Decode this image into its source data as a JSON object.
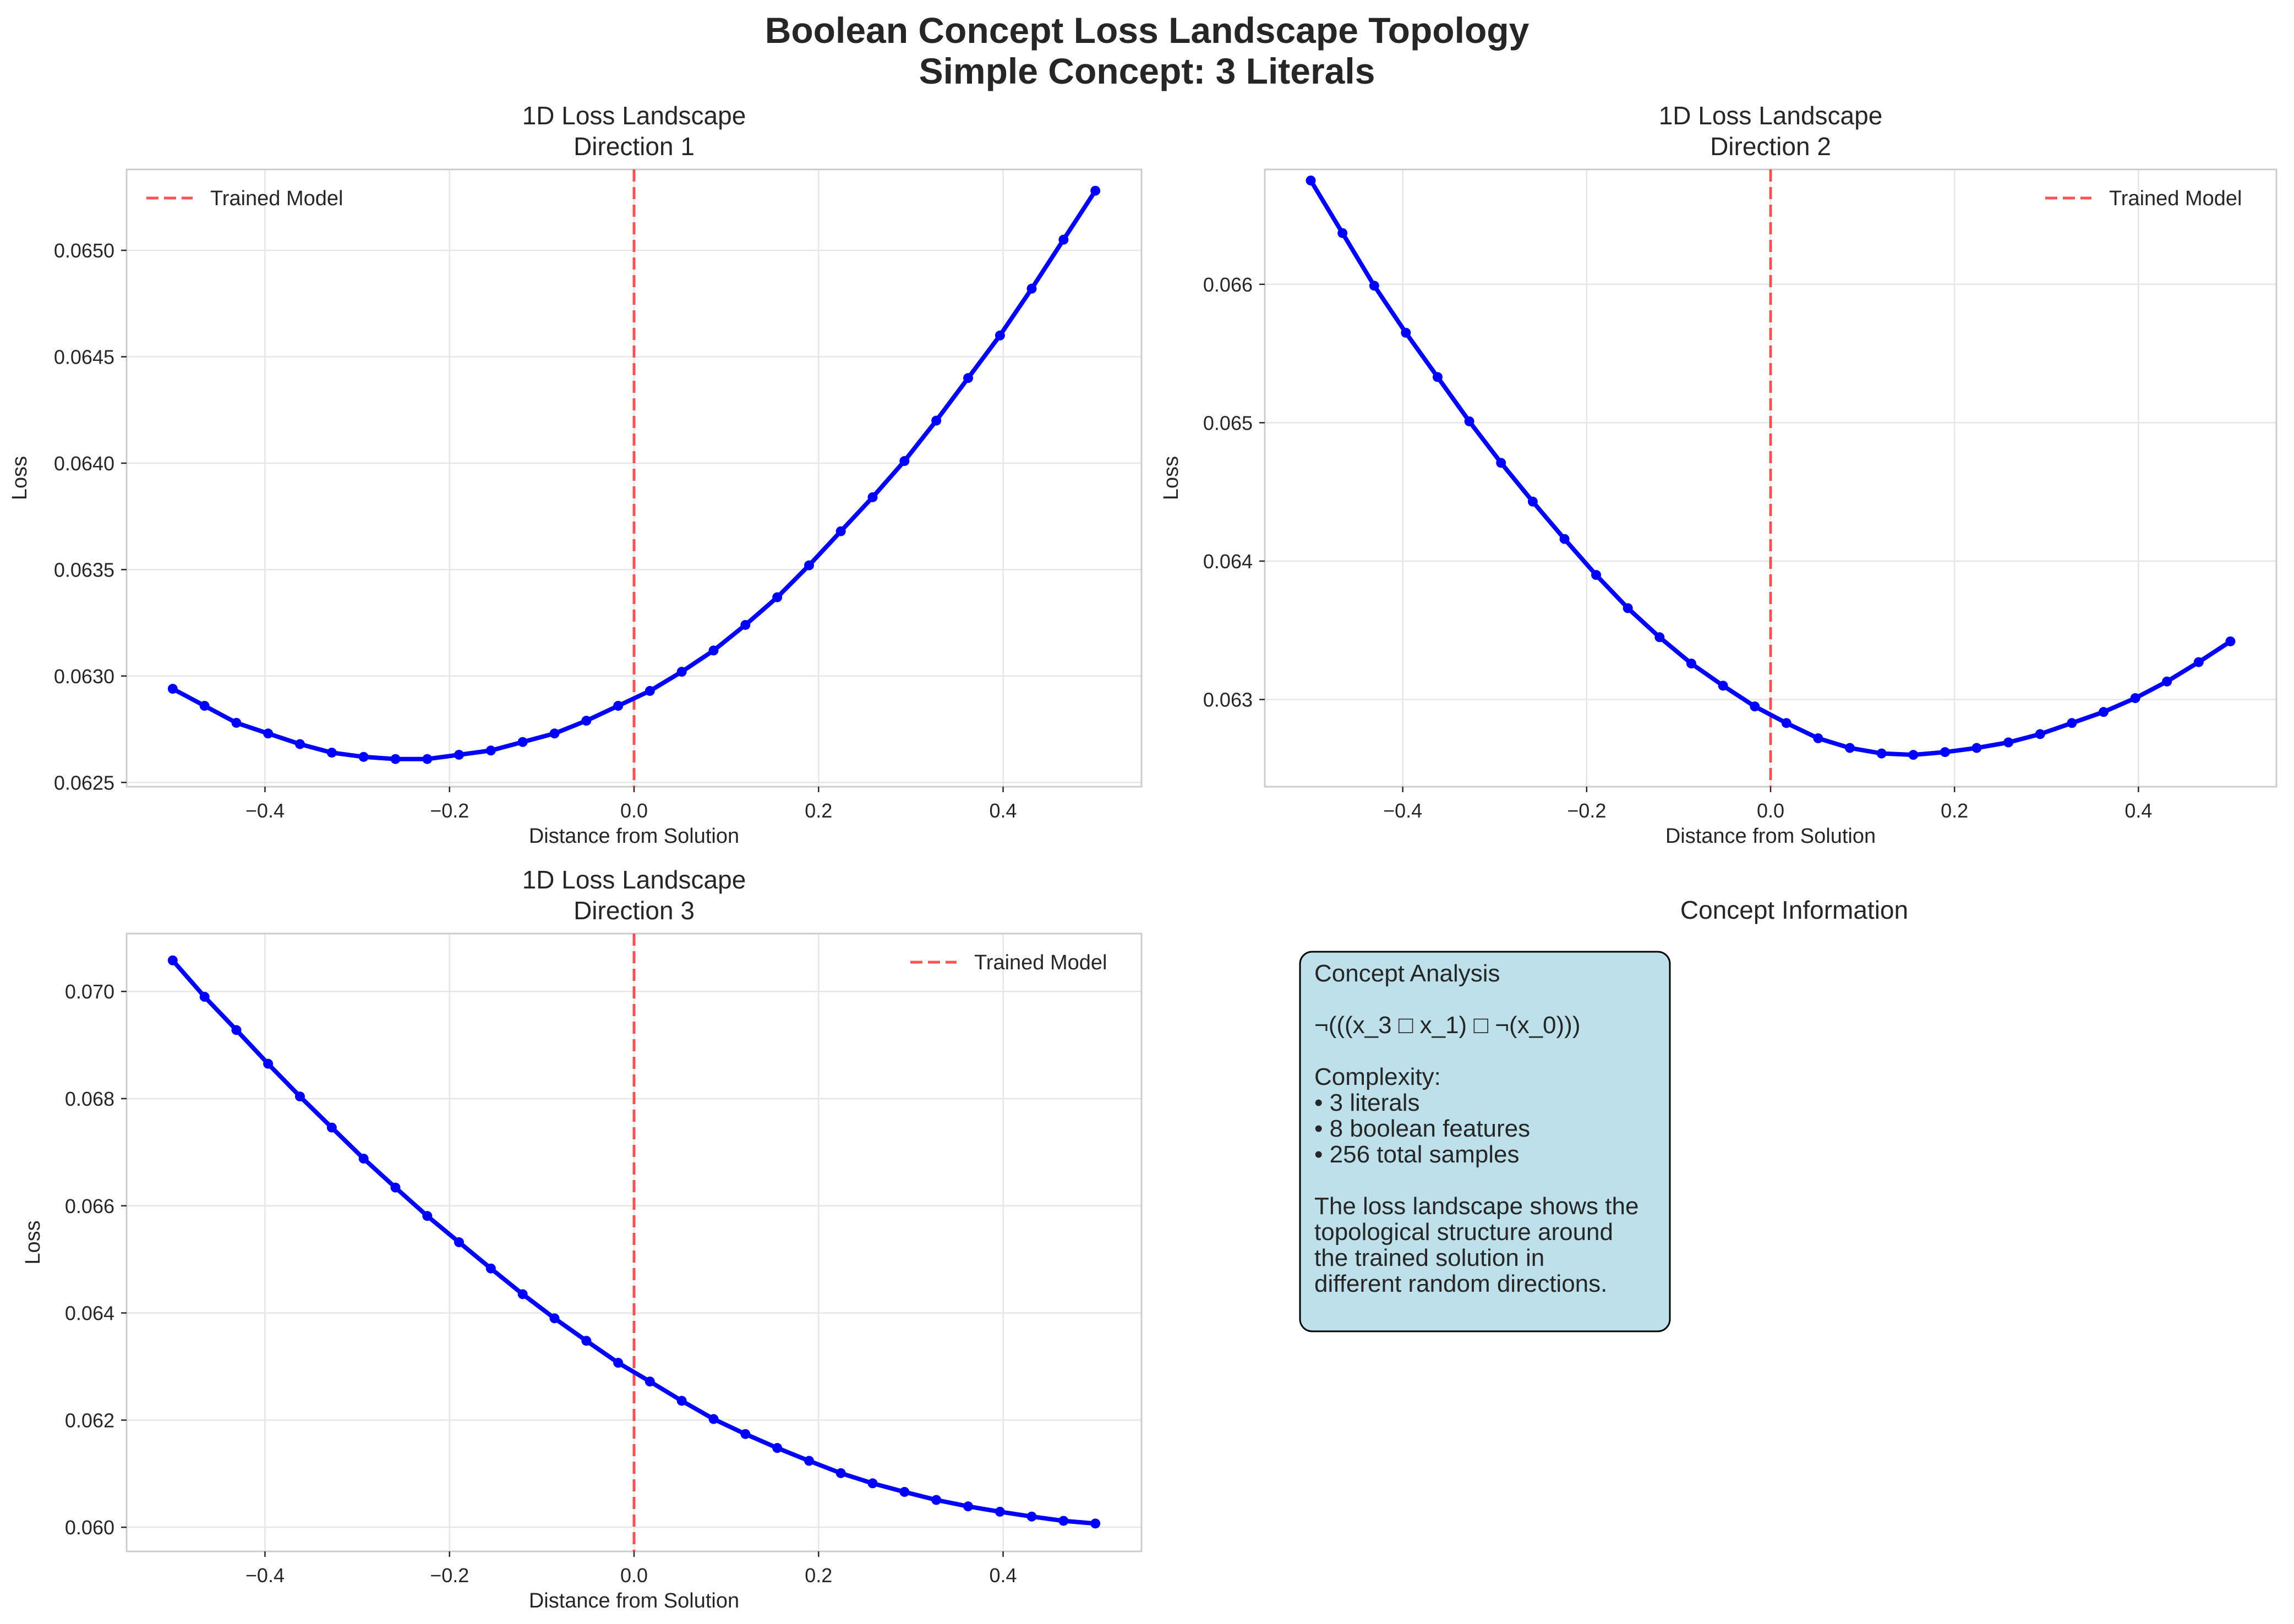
{
  "figure": {
    "title_line1": "Boolean Concept Loss Landscape Topology",
    "title_line2": "Simple Concept: 3 Literals"
  },
  "chart_data": [
    {
      "type": "line",
      "title_line1": "1D Loss Landscape",
      "title_line2": "Direction 1",
      "xlabel": "Distance from Solution",
      "ylabel": "Loss",
      "xlim": [
        -0.55,
        0.55
      ],
      "ylim": [
        0.06248,
        0.06538
      ],
      "xticks": [
        -0.4,
        -0.2,
        0.0,
        0.2,
        0.4
      ],
      "xtick_labels": [
        "−0.4",
        "−0.2",
        "0.0",
        "0.2",
        "0.4"
      ],
      "yticks": [
        0.0625,
        0.063,
        0.0635,
        0.064,
        0.0645,
        0.065
      ],
      "ytick_labels": [
        "0.0625",
        "0.0630",
        "0.0635",
        "0.0640",
        "0.0645",
        "0.0650"
      ],
      "grid": true,
      "legend": {
        "position": "top-left",
        "entries": [
          "Trained Model"
        ]
      },
      "reference_line": {
        "x": 0.0,
        "color": "#ff4040",
        "style": "dashed",
        "label": "Trained Model"
      },
      "series": [
        {
          "color": "#0000ff",
          "x": [
            -0.5,
            -0.4655,
            -0.431,
            -0.3966,
            -0.3621,
            -0.3276,
            -0.2931,
            -0.2586,
            -0.2241,
            -0.1897,
            -0.1552,
            -0.1207,
            -0.0862,
            -0.0517,
            -0.0172,
            0.0172,
            0.0517,
            0.0862,
            0.1207,
            0.1552,
            0.1897,
            0.2241,
            0.2586,
            0.2931,
            0.3276,
            0.3621,
            0.3966,
            0.431,
            0.4655,
            0.5
          ],
          "y": [
            0.06294,
            0.06286,
            0.06278,
            0.06273,
            0.06268,
            0.06264,
            0.06262,
            0.06261,
            0.06261,
            0.06263,
            0.06265,
            0.06269,
            0.06273,
            0.06279,
            0.06286,
            0.06293,
            0.06302,
            0.06312,
            0.06324,
            0.06337,
            0.06352,
            0.06368,
            0.06384,
            0.06401,
            0.0642,
            0.0644,
            0.0646,
            0.06482,
            0.06505,
            0.06528
          ]
        }
      ]
    },
    {
      "type": "line",
      "title_line1": "1D Loss Landscape",
      "title_line2": "Direction 2",
      "xlabel": "Distance from Solution",
      "ylabel": "Loss",
      "xlim": [
        -0.55,
        0.55
      ],
      "ylim": [
        0.06237,
        0.06683
      ],
      "xticks": [
        -0.4,
        -0.2,
        0.0,
        0.2,
        0.4
      ],
      "xtick_labels": [
        "−0.4",
        "−0.2",
        "0.0",
        "0.2",
        "0.4"
      ],
      "yticks": [
        0.063,
        0.064,
        0.065,
        0.066
      ],
      "ytick_labels": [
        "0.063",
        "0.064",
        "0.065",
        "0.066"
      ],
      "grid": true,
      "legend": {
        "position": "top-right",
        "entries": [
          "Trained Model"
        ]
      },
      "reference_line": {
        "x": 0.0,
        "color": "#ff4040",
        "style": "dashed",
        "label": "Trained Model"
      },
      "series": [
        {
          "color": "#0000ff",
          "x": [
            -0.5,
            -0.4655,
            -0.431,
            -0.3966,
            -0.3621,
            -0.3276,
            -0.2931,
            -0.2586,
            -0.2241,
            -0.1897,
            -0.1552,
            -0.1207,
            -0.0862,
            -0.0517,
            -0.0172,
            0.0172,
            0.0517,
            0.0862,
            0.1207,
            0.1552,
            0.1897,
            0.2241,
            0.2586,
            0.2931,
            0.3276,
            0.3621,
            0.3966,
            0.431,
            0.4655,
            0.5
          ],
          "y": [
            0.06675,
            0.06637,
            0.06599,
            0.06565,
            0.06533,
            0.06501,
            0.06471,
            0.06443,
            0.06416,
            0.0639,
            0.06366,
            0.06345,
            0.06326,
            0.0631,
            0.06295,
            0.06283,
            0.06272,
            0.06265,
            0.06261,
            0.0626,
            0.06262,
            0.06265,
            0.06269,
            0.06275,
            0.06283,
            0.06291,
            0.06301,
            0.06313,
            0.06327,
            0.06342
          ]
        }
      ]
    },
    {
      "type": "line",
      "title_line1": "1D Loss Landscape",
      "title_line2": "Direction 3",
      "xlabel": "Distance from Solution",
      "ylabel": "Loss",
      "xlim": [
        -0.55,
        0.55
      ],
      "ylim": [
        0.05955,
        0.07108
      ],
      "xticks": [
        -0.4,
        -0.2,
        0.0,
        0.2,
        0.4
      ],
      "xtick_labels": [
        "−0.4",
        "−0.2",
        "0.0",
        "0.2",
        "0.4"
      ],
      "yticks": [
        0.06,
        0.062,
        0.064,
        0.066,
        0.068,
        0.07
      ],
      "ytick_labels": [
        "0.060",
        "0.062",
        "0.064",
        "0.066",
        "0.068",
        "0.070"
      ],
      "grid": true,
      "legend": {
        "position": "top-right",
        "entries": [
          "Trained Model"
        ]
      },
      "reference_line": {
        "x": 0.0,
        "color": "#ff4040",
        "style": "dashed",
        "label": "Trained Model"
      },
      "series": [
        {
          "color": "#0000ff",
          "x": [
            -0.5,
            -0.4655,
            -0.431,
            -0.3966,
            -0.3621,
            -0.3276,
            -0.2931,
            -0.2586,
            -0.2241,
            -0.1897,
            -0.1552,
            -0.1207,
            -0.0862,
            -0.0517,
            -0.0172,
            0.0172,
            0.0517,
            0.0862,
            0.1207,
            0.1552,
            0.1897,
            0.2241,
            0.2586,
            0.2931,
            0.3276,
            0.3621,
            0.3966,
            0.431,
            0.4655,
            0.5
          ],
          "y": [
            0.07058,
            0.0699,
            0.06928,
            0.06865,
            0.06804,
            0.06746,
            0.06688,
            0.06634,
            0.06581,
            0.06532,
            0.06483,
            0.06435,
            0.0639,
            0.06348,
            0.06307,
            0.06272,
            0.06236,
            0.06202,
            0.06174,
            0.06148,
            0.06124,
            0.06101,
            0.06082,
            0.06066,
            0.06051,
            0.06039,
            0.06029,
            0.0602,
            0.06012,
            0.06007
          ]
        }
      ]
    }
  ],
  "info_panel": {
    "title": "Concept Information",
    "lines": [
      "Concept Analysis",
      "",
      "¬(((x_3 □ x_1) □ ¬(x_0)))",
      "",
      "Complexity:",
      "• 3 literals",
      "• 8 boolean features",
      "• 256 total samples",
      "",
      "The loss landscape shows the",
      "topological structure around",
      "the trained solution in",
      "different random directions."
    ]
  }
}
